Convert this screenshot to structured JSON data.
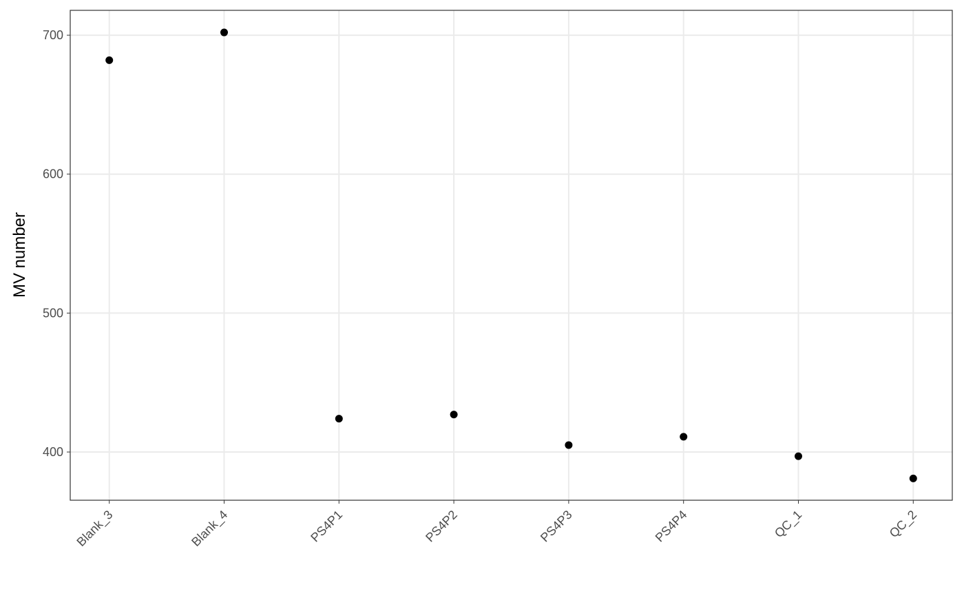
{
  "chart_data": {
    "type": "scatter",
    "y_label": "MV number",
    "categories": [
      "Blank_3",
      "Blank_4",
      "PS4P1",
      "PS4P2",
      "PS4P3",
      "PS4P4",
      "QC_1",
      "QC_2"
    ],
    "values": [
      682,
      702,
      424,
      427,
      405,
      411,
      397,
      381
    ],
    "color": "#000000",
    "ylim": [
      365.3,
      717.9
    ],
    "yticks": [
      400,
      500,
      600,
      700
    ],
    "grid": true
  }
}
